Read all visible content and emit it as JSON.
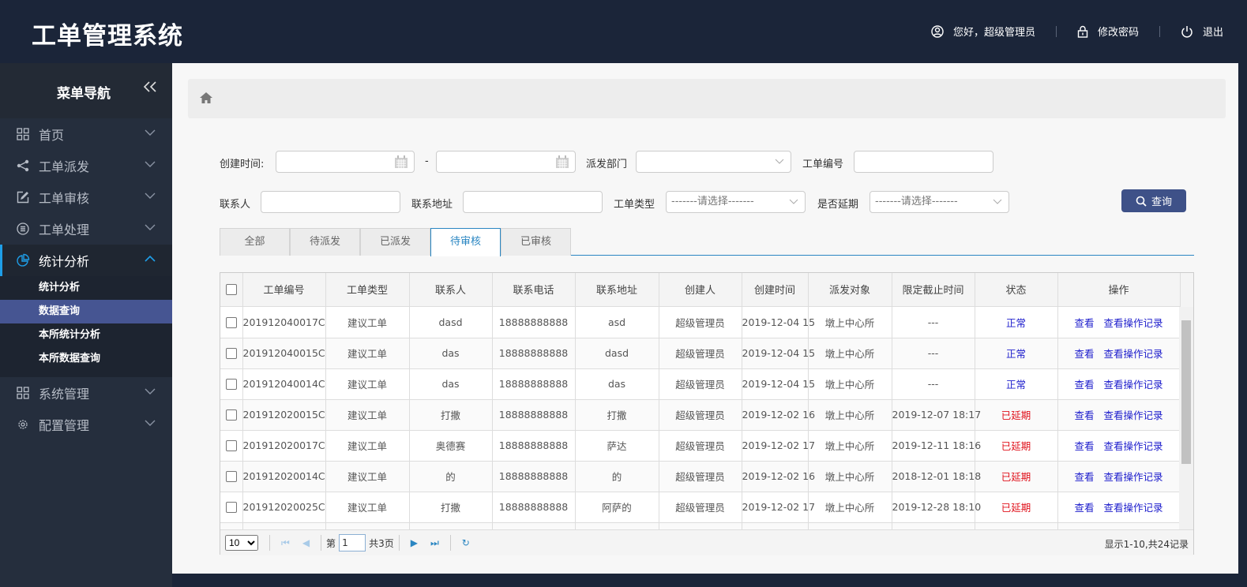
{
  "header": {
    "title": "工单管理系统",
    "greeting": "您好，超级管理员",
    "change_password": "修改密码",
    "logout": "退出"
  },
  "sidebar": {
    "title": "菜单导航",
    "collapse_icon": "double-chevron-left",
    "items": [
      {
        "label": "首页",
        "icon": "grid-icon"
      },
      {
        "label": "工单派发",
        "icon": "share-icon"
      },
      {
        "label": "工单审核",
        "icon": "edit-icon"
      },
      {
        "label": "工单处理",
        "icon": "database-icon"
      },
      {
        "label": "统计分析",
        "icon": "pie-chart-icon",
        "expanded": true,
        "children": [
          "统计分析",
          "数据查询",
          "本所统计分析",
          "本所数据查询"
        ],
        "selected_child": "数据查询"
      },
      {
        "label": "系统管理",
        "icon": "grid-icon"
      },
      {
        "label": "配置管理",
        "icon": "gear-icon"
      }
    ]
  },
  "filters": {
    "create_time_label": "创建时间:",
    "range_sep": "-",
    "dept_label": "派发部门",
    "order_no_label": "工单编号",
    "contact_label": "联系人",
    "address_label": "联系地址",
    "type_label": "工单类型",
    "type_value": "-------请选择-------",
    "delay_label": "是否延期",
    "delay_value": "-------请选择-------",
    "search_button": "查询"
  },
  "tabs": [
    {
      "label": "全部"
    },
    {
      "label": "待派发"
    },
    {
      "label": "已派发"
    },
    {
      "label": "待审核",
      "active": true
    },
    {
      "label": "已审核"
    }
  ],
  "table": {
    "columns": [
      "工单编号",
      "工单类型",
      "联系人",
      "联系电话",
      "联系地址",
      "创建人",
      "创建时间",
      "派发对象",
      "限定截止时间",
      "状态",
      "操作"
    ],
    "view_label": "查看",
    "log_label": "查看操作记录",
    "rows": [
      {
        "no": "201912040017C",
        "type": "建议工单",
        "contact": "dasd",
        "phone": "18888888888",
        "addr": "asd",
        "creator": "超级管理员",
        "time": "2019-12-04 15",
        "target": "墩上中心所",
        "deadline": "---",
        "status": "正常",
        "late": false
      },
      {
        "no": "201912040015C",
        "type": "建议工单",
        "contact": "das",
        "phone": "18888888888",
        "addr": "dasd",
        "creator": "超级管理员",
        "time": "2019-12-04 15",
        "target": "墩上中心所",
        "deadline": "---",
        "status": "正常",
        "late": false
      },
      {
        "no": "201912040014C",
        "type": "建议工单",
        "contact": "das",
        "phone": "18888888888",
        "addr": "das",
        "creator": "超级管理员",
        "time": "2019-12-04 15",
        "target": "墩上中心所",
        "deadline": "---",
        "status": "正常",
        "late": false
      },
      {
        "no": "201912020015C",
        "type": "建议工单",
        "contact": "打撒",
        "phone": "18888888888",
        "addr": "打撒",
        "creator": "超级管理员",
        "time": "2019-12-02 16",
        "target": "墩上中心所",
        "deadline": "2019-12-07 18:17",
        "status": "已延期",
        "late": true
      },
      {
        "no": "201912020017C",
        "type": "建议工单",
        "contact": "奥德赛",
        "phone": "18888888888",
        "addr": "萨达",
        "creator": "超级管理员",
        "time": "2019-12-02 17",
        "target": "墩上中心所",
        "deadline": "2019-12-11 18:16",
        "status": "已延期",
        "late": true
      },
      {
        "no": "201912020014C",
        "type": "建议工单",
        "contact": "的",
        "phone": "18888888888",
        "addr": "的",
        "creator": "超级管理员",
        "time": "2019-12-02 16",
        "target": "墩上中心所",
        "deadline": "2018-12-01 18:18",
        "status": "已延期",
        "late": true
      },
      {
        "no": "201912020025C",
        "type": "建议工单",
        "contact": "打撒",
        "phone": "18888888888",
        "addr": "阿萨的",
        "creator": "超级管理员",
        "time": "2019-12-02 17",
        "target": "墩上中心所",
        "deadline": "2019-12-28 18:10",
        "status": "已延期",
        "late": true
      }
    ]
  },
  "pager": {
    "page_size": "10",
    "page_prefix": "第",
    "page": "1",
    "total_pages": "共3页",
    "summary": "显示1-10,共24记录"
  },
  "colors": {
    "header_bg": "#1b2539",
    "sidebar_bg": "#252e3d",
    "selected_bg": "#465592",
    "accent": "#2a86c2",
    "normal": "#1c1ccc",
    "late": "#e0101a"
  }
}
